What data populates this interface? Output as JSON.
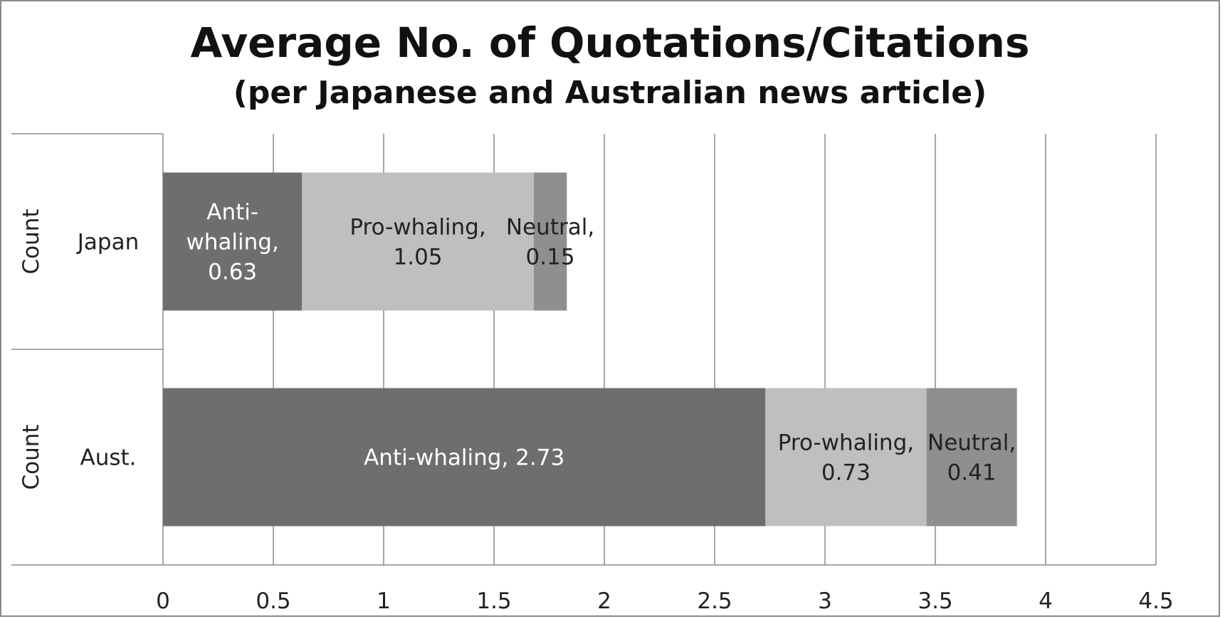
{
  "chart_data": {
    "type": "bar",
    "orientation": "horizontal",
    "stacked": true,
    "title": "Average No. of Quotations/Citations",
    "subtitle": "(per Japanese and Australian news article)",
    "group_label": "Count",
    "categories": [
      "Japan",
      "Aust."
    ],
    "series": [
      {
        "name": "Anti-whaling",
        "values": [
          0.63,
          2.73
        ],
        "color": "#6d6e70",
        "label_color": "#ffffff",
        "labels": [
          [
            "Anti-",
            "whaling,",
            "0.63"
          ],
          [
            "Anti-whaling, 2.73"
          ]
        ]
      },
      {
        "name": "Pro-whaling",
        "values": [
          1.05,
          0.73
        ],
        "color": "#bfbfbd",
        "label_color": "#222222",
        "labels": [
          [
            "Pro-whaling,",
            "1.05"
          ],
          [
            "Pro-whaling,",
            "0.73"
          ]
        ]
      },
      {
        "name": "Neutral",
        "values": [
          0.15,
          0.41
        ],
        "color": "#8f8f8f",
        "label_color": "#222222",
        "labels": [
          [
            "Neutral,",
            "0.15"
          ],
          [
            "Neutral,",
            "0.41"
          ]
        ]
      }
    ],
    "xlim": [
      0,
      4.5
    ],
    "xticks": [
      "0",
      "0.5",
      "1",
      "1.5",
      "2",
      "2.5",
      "3",
      "3.5",
      "4",
      "4.5"
    ],
    "grid": true,
    "legend": "none"
  }
}
